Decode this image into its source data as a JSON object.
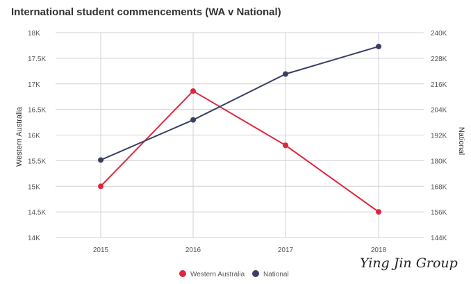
{
  "chart_data": {
    "type": "line",
    "title": "International student commencements (WA v National)",
    "categories": [
      "2015",
      "2016",
      "2017",
      "2018"
    ],
    "y_left": {
      "label": "Western Australia",
      "ylim": [
        14000,
        18000
      ],
      "ticks": [
        14000,
        14500,
        15000,
        15500,
        16000,
        16500,
        17000,
        17500,
        18000
      ],
      "tick_labels": [
        "14K",
        "14.5K",
        "15K",
        "15.5K",
        "16K",
        "16.5K",
        "17K",
        "17.5K",
        "18K"
      ]
    },
    "y_right": {
      "label": "National",
      "ylim": [
        144000,
        240000
      ],
      "ticks": [
        144000,
        156000,
        168000,
        180000,
        192000,
        204000,
        216000,
        228000,
        240000
      ],
      "tick_labels": [
        "144K",
        "156K",
        "168K",
        "180K",
        "192K",
        "204K",
        "216K",
        "228K",
        "240K"
      ]
    },
    "series": [
      {
        "name": "Western Australia",
        "axis": "left",
        "color": "#e0263d",
        "values": [
          15000,
          16860,
          15800,
          14500
        ]
      },
      {
        "name": "National",
        "axis": "right",
        "color": "#3b3f66",
        "values": [
          180300,
          199100,
          220600,
          233500
        ]
      }
    ],
    "grid": true,
    "legend_position": "bottom-center"
  },
  "watermark": "Ying Jin Group"
}
